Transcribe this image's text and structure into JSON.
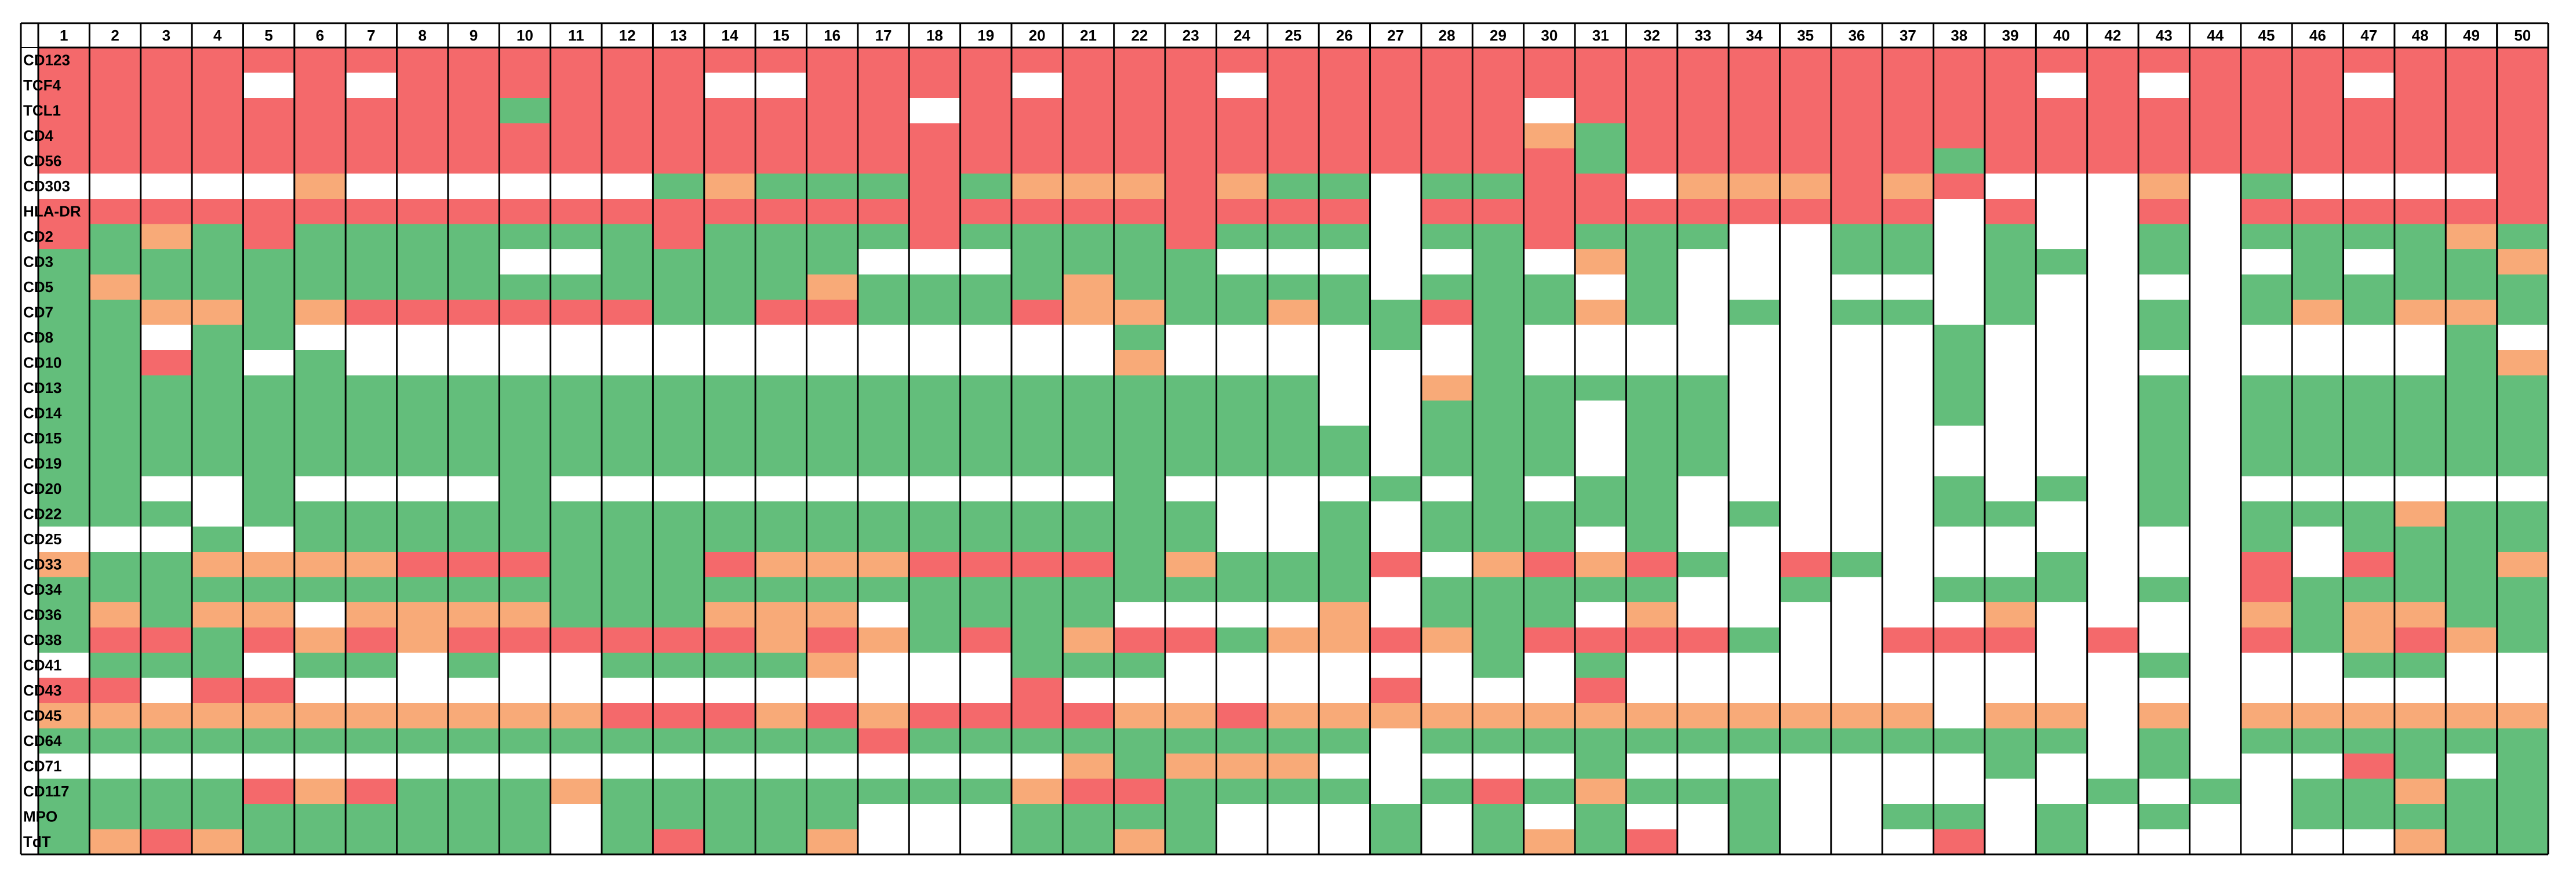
{
  "chart_data": {
    "type": "heatmap",
    "columns": [
      "1",
      "2",
      "3",
      "4",
      "5",
      "6",
      "7",
      "8",
      "9",
      "10",
      "11",
      "12",
      "13",
      "14",
      "15",
      "16",
      "17",
      "18",
      "19",
      "20",
      "21",
      "22",
      "23",
      "24",
      "25",
      "26",
      "27",
      "28",
      "29",
      "30",
      "31",
      "32",
      "33",
      "34",
      "35",
      "36",
      "37",
      "38",
      "39",
      "40",
      "42",
      "43",
      "44",
      "45",
      "46",
      "47",
      "48",
      "49",
      "50"
    ],
    "rows": [
      "CD123",
      "TCF4",
      "TCL1",
      "CD4",
      "CD56",
      "CD303",
      "HLA-DR",
      "CD2",
      "CD3",
      "CD5",
      "CD7",
      "CD8",
      "CD10",
      "CD13",
      "CD14",
      "CD15",
      "CD19",
      "CD20",
      "CD22",
      "CD25",
      "CD33",
      "CD34",
      "CD36",
      "CD38",
      "CD41",
      "CD43",
      "CD45",
      "CD64",
      "CD71",
      "CD117",
      "MPO",
      "TdT"
    ],
    "legend": {
      "R": "#f4696b",
      "O": "#f8aa78",
      "G": "#63be7b",
      "W": "#ffffff"
    },
    "grid": [
      "RRRRRRRRRRRRRRRRRRRRRRRRRRRRRRRRRRRRRRRRRRRRRRRRR",
      "RRRRWRWRRRRRRWWRRRRWRRRWRRRRRRRRRRRRRRRWRWRRRWRRR",
      "RRRRRRRRRGRRRRRRRWRRRRRRRRRRRWRRRRRRRRRRRRRRRRRRR",
      "RRRRRRRRRRRRRRRRRRRRRRRRRRRRROGRRRRRRRRRRRRRRRRRR",
      "RRRRRRRRRRRRRRRRRRRRRRRRRRRRRRGRRRRRRGRRRRRRRRRRR",
      "WWWWWOWWWWWWGOGGGRGOOOROGGWGGRRWOOORORWWWOWGWWWWR",
      "RRRRRRRRRRRRRRRRRRRRRRRRRRWRRRRRRRRRRWRWWRWRRRRRR",
      "RGOGRGGGGGGGRGGGGRGGGGRGGGWGGRGGGWWGGWGWWGWGGGGOG",
      "GGGGGGGGGWWGGGGGWWWGGGGWWWWWGWOGWWWGGWGGWGWWGWGGO",
      "GOGGGGGGGGGGGGGOGGGGOGGGGGWGGGWGWWWWWWGWWWWGGGGGG",
      "GGOOGORRRRRRGGRRGGGROOGGOGGRGGOGWGWGGWGWWGWGOGOOG",
      "GGWGGWWWWWWWWWWWWWWWWGWWWWGWGWWWWWWWWGWWWGWWWWWGW",
      "GGRGWGWWWWWWWWWWWWWWWOWWWWWWGWWWWWWWWGWWWWWWWWWGO",
      "GGGGGGGGGGGGGGGGGGGGGGGGGWWOGGGGGWWWWGWWWGWGGGGGG",
      "GGGGGGGGGGGGGGGGGGGGGGGGGWWGGGWGGWWWWGWWWGWGGGGGG",
      "GGGGGGGGGGGGGGGGGGGGGGGGGGWGGGWGGWWWWWWWWGWGGGGGG",
      "GGGGGGGGGGGGGGGGGGGGGGGGGGWGGGWGGWWWWWWWWGWGGGGGG",
      "GGWWGWWWWGWWWWWWWWWWWGWWWWGWGWGGWWWWWGWGWGWWWWWWW",
      "GGGWGGGGGGGGGGGGGGGGGGGWWGWGGGGGWGWWWGGWWGWGGGOGG",
      "WWWGWGGGGGGGGGGGGGGGGGGWWGWGGGWGWWWWWWWWWWWGWGGGG",
      "OGGOOOORRRGGGROOORRRRGOGGGRWORORGWRGWWWGWWWRWRGGO",
      "GGGGGGGGGGGGGGGGGGGGGGGGGGWGGGGGWWGWWGGGWGWRGGGGG",
      "GOGOOWOOOOGGGOOOWGGGGWWWWOWGGGWOWWWWWWOWWWWOGOOGG",
      "GRRGRORORRRRRROROGRGORRGOOROGRRRRGWWRRRWRWWRGOROG",
      "WGGGWGGWGWWGGGGOWWWGGGWWWWWWGWGWWWWWWWWWWGWWWGGWW",
      "RRWRRWWWWWWWWWWWWWWRWWWWWWRWWWRWWWWWWWWWWWWWWWWWW",
      "OOOOOOOOOOORRRORORRRROOROOOOOOOOOOOOOWOOWOWOOOOOO",
      "GGGGGGGGGGGGGGGGRGGGGGGGGGWGGGGGGGGGGGGGWGWGGGGGG",
      "WWWWWWWWWWWWWWWWWWWWOGOOOWWWWWGWWWWWWWGWWGWWWRGWG",
      "GGGGRORGGGOGGGGGGGGORRGGGGWGRGOGGGWWWWWWGWGWGGOGG",
      "GGGGGGGGGGWGGGGGWWWGGGGWWWGWGWGWWGWWGGWGWGWWGGGGG",
      "GOROGGGGGGWGRGGOWWWGGOGWWWGWGOGRWGWWWRWGWWWWWWOGG"
    ]
  }
}
